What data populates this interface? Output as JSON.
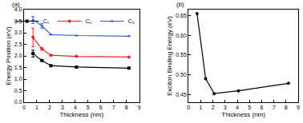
{
  "chart_data": [
    {
      "type": "line",
      "annotations": [
        "(a)"
      ],
      "x_label": "Thickness (nm)",
      "y_label": "Energy Position (eV)",
      "x": [
        0.7,
        1.4,
        2.1,
        4.1,
        8.2
      ],
      "series": [
        {
          "name": "C₁",
          "color": "#000000",
          "marker": "square",
          "values": [
            2.1,
            1.8,
            1.58,
            1.52,
            1.47
          ],
          "errors": [
            0.15,
            null,
            null,
            null,
            null
          ]
        },
        {
          "name": "C₂",
          "color": "#e8262a",
          "marker": "circle",
          "values": [
            2.8,
            2.3,
            2.03,
            1.98,
            1.95
          ],
          "errors": [
            0.4,
            0.05,
            null,
            null,
            null
          ]
        },
        {
          "name": "C₃",
          "color": "#3a5fcd",
          "marker": "triangle-up",
          "values": [
            3.55,
            3.3,
            2.92,
            2.88,
            2.85
          ],
          "errors": [
            0.15,
            0.1,
            null,
            null,
            null
          ]
        }
      ],
      "xlim": [
        0,
        9
      ],
      "xticks": [
        0,
        1,
        2,
        3,
        4,
        5,
        6,
        7,
        8,
        9
      ],
      "ylim": [
        0,
        4
      ],
      "yticks": [
        {
          "value": 0,
          "label": "0.0"
        },
        0.5,
        {
          "value": 1,
          "label": "1.0"
        },
        1.5,
        {
          "value": 2,
          "label": "2.0"
        },
        2.5,
        {
          "value": 3,
          "label": "3.0"
        },
        3.5,
        {
          "value": 4,
          "label": "4.0"
        }
      ],
      "grid": false,
      "legend": "top right"
    },
    {
      "type": "line",
      "annotations": [
        "(b)"
      ],
      "x_label": "Thickness (nm)",
      "y_label": "Exciton Binding Energy (eV)",
      "x": [
        0.7,
        1.4,
        2.1,
        4.1,
        8.2
      ],
      "series": [
        {
          "name": "Exciton Binding Energy",
          "color": "#000000",
          "marker": "circle",
          "values": [
            0.655,
            0.49,
            0.452,
            0.459,
            0.478
          ]
        }
      ],
      "xlim": [
        0,
        9
      ],
      "xticks": [
        0,
        1,
        2,
        3,
        4,
        5,
        6,
        7,
        8,
        9
      ],
      "ylim": [
        0.43,
        0.665
      ],
      "yticks": [
        0.45,
        {
          "value": 0.5,
          "label": "0.50"
        },
        0.55,
        {
          "value": 0.6,
          "label": "0.60"
        },
        0.65
      ],
      "grid": false
    }
  ]
}
